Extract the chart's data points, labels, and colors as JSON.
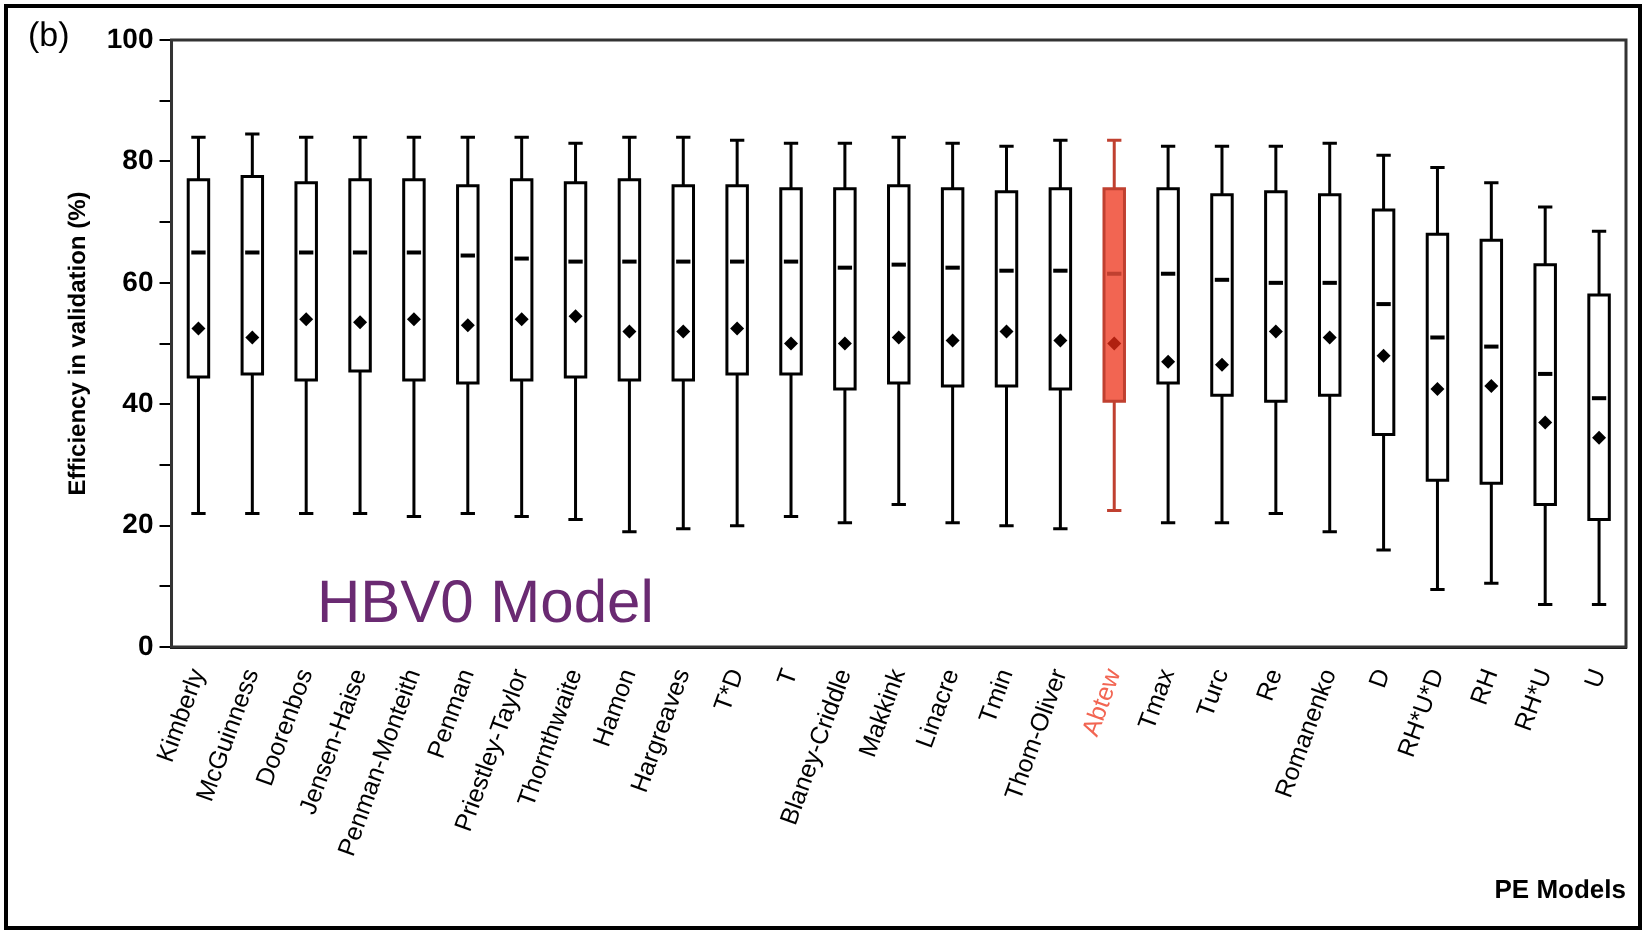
{
  "chart_data": {
    "type": "box",
    "ylabel": "Efficiency in validation (%)",
    "xlabel": "PE Models",
    "annotations": [
      "(b)",
      "HBV0 Model"
    ],
    "categories": [
      "Kimberly",
      "McGuinness",
      "Doorenbos",
      "Jensen-Haise",
      "Penman-Monteith",
      "Penman",
      "Priestley-Taylor",
      "Thornthwaite",
      "Hamon",
      "Hargreaves",
      "T*D",
      "T",
      "Blaney-Criddle",
      "Makkink",
      "Linacre",
      "Tmin",
      "Thom-Oliver",
      "Abtew",
      "Tmax",
      "Turc",
      "Re",
      "Romanenko",
      "D",
      "RH*U*D",
      "RH",
      "RH*U",
      "U"
    ],
    "colors": [
      "#ffffff",
      "#ffffff",
      "#ffffff",
      "#ffffff",
      "#ffffff",
      "#ffffff",
      "#ffffff",
      "#ffffff",
      "#ffffff",
      "#ffffff",
      "#ffffff",
      "#ffffff",
      "#ffffff",
      "#ffffff",
      "#ffffff",
      "#ffffff",
      "#ffffff",
      "#f26552",
      "#ffffff",
      "#ffffff",
      "#ffffff",
      "#ffffff",
      "#ffffff",
      "#ffffff",
      "#ffffff",
      "#ffffff",
      "#ffffff"
    ],
    "boxes": [
      {
        "low": 22,
        "q1": 44.5,
        "median": 65,
        "q3": 77,
        "high": 84,
        "mean": 52.5
      },
      {
        "low": 22,
        "q1": 45,
        "median": 65,
        "q3": 77.5,
        "high": 84.5,
        "mean": 51
      },
      {
        "low": 22,
        "q1": 44,
        "median": 65,
        "q3": 76.5,
        "high": 84,
        "mean": 54
      },
      {
        "low": 22,
        "q1": 45.5,
        "median": 65,
        "q3": 77,
        "high": 84,
        "mean": 53.5
      },
      {
        "low": 21.5,
        "q1": 44,
        "median": 65,
        "q3": 77,
        "high": 84,
        "mean": 54
      },
      {
        "low": 22,
        "q1": 43.5,
        "median": 64.5,
        "q3": 76,
        "high": 84,
        "mean": 53
      },
      {
        "low": 21.5,
        "q1": 44,
        "median": 64,
        "q3": 77,
        "high": 84,
        "mean": 54
      },
      {
        "low": 21,
        "q1": 44.5,
        "median": 63.5,
        "q3": 76.5,
        "high": 83,
        "mean": 54.5
      },
      {
        "low": 19,
        "q1": 44,
        "median": 63.5,
        "q3": 77,
        "high": 84,
        "mean": 52
      },
      {
        "low": 19.5,
        "q1": 44,
        "median": 63.5,
        "q3": 76,
        "high": 84,
        "mean": 52
      },
      {
        "low": 20,
        "q1": 45,
        "median": 63.5,
        "q3": 76,
        "high": 83.5,
        "mean": 52.5
      },
      {
        "low": 21.5,
        "q1": 45,
        "median": 63.5,
        "q3": 75.5,
        "high": 83,
        "mean": 50
      },
      {
        "low": 20.5,
        "q1": 42.5,
        "median": 62.5,
        "q3": 75.5,
        "high": 83,
        "mean": 50
      },
      {
        "low": 23.5,
        "q1": 43.5,
        "median": 63,
        "q3": 76,
        "high": 84,
        "mean": 51
      },
      {
        "low": 20.5,
        "q1": 43,
        "median": 62.5,
        "q3": 75.5,
        "high": 83,
        "mean": 50.5
      },
      {
        "low": 20,
        "q1": 43,
        "median": 62,
        "q3": 75,
        "high": 82.5,
        "mean": 52
      },
      {
        "low": 19.5,
        "q1": 42.5,
        "median": 62,
        "q3": 75.5,
        "high": 83.5,
        "mean": 50.5
      },
      {
        "low": 22.5,
        "q1": 40.5,
        "median": 61.5,
        "q3": 75.5,
        "high": 83.5,
        "mean": 50
      },
      {
        "low": 20.5,
        "q1": 43.5,
        "median": 61.5,
        "q3": 75.5,
        "high": 82.5,
        "mean": 47
      },
      {
        "low": 20.5,
        "q1": 41.5,
        "median": 60.5,
        "q3": 74.5,
        "high": 82.5,
        "mean": 46.5
      },
      {
        "low": 22,
        "q1": 40.5,
        "median": 60,
        "q3": 75,
        "high": 82.5,
        "mean": 52
      },
      {
        "low": 19,
        "q1": 41.5,
        "median": 60,
        "q3": 74.5,
        "high": 83,
        "mean": 51
      },
      {
        "low": 16,
        "q1": 35,
        "median": 56.5,
        "q3": 72,
        "high": 81,
        "mean": 48
      },
      {
        "low": 9.5,
        "q1": 27.5,
        "median": 51,
        "q3": 68,
        "high": 79,
        "mean": 42.5
      },
      {
        "low": 10.5,
        "q1": 27,
        "median": 49.5,
        "q3": 67,
        "high": 76.5,
        "mean": 43
      },
      {
        "low": 7,
        "q1": 23.5,
        "median": 45,
        "q3": 63,
        "high": 72.5,
        "mean": 37
      },
      {
        "low": 7,
        "q1": 21,
        "median": 41,
        "q3": 58,
        "high": 68.5,
        "mean": 34.5
      }
    ],
    "ylim": [
      0,
      100
    ],
    "yticks": [
      0,
      {
        "value": 10,
        "label": null
      },
      20,
      {
        "value": 30,
        "label": null
      },
      40,
      {
        "value": 50,
        "label": null
      },
      60,
      {
        "value": 70,
        "label": null
      },
      80,
      {
        "value": 90,
        "label": null
      },
      100
    ],
    "marker": "diamond",
    "grid": false,
    "legend": false
  }
}
